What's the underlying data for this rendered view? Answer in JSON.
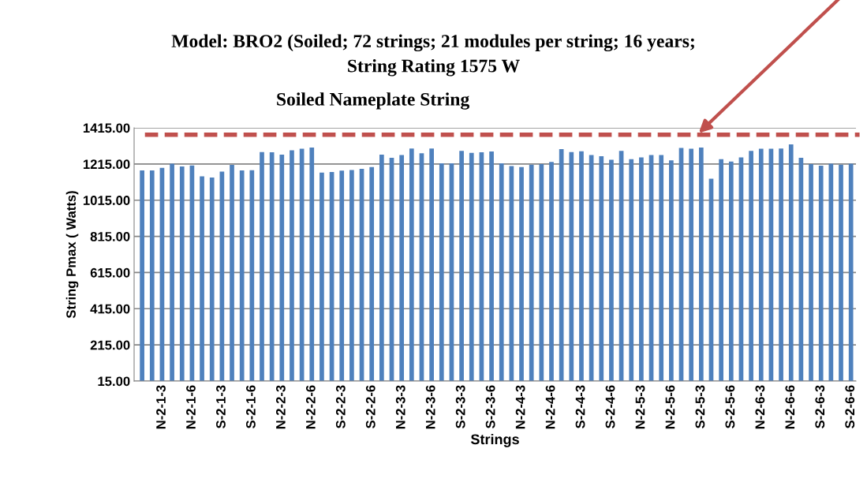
{
  "chart_data": {
    "type": "bar",
    "title": "Model: BRO2 (Soiled; 72 strings; 21 modules per string; 16 years;\nString Rating 1575 W",
    "xlabel": "Strings",
    "ylabel": "String Pmax ( Watts)",
    "categories": [
      null,
      null,
      "N-2-1-3",
      null,
      null,
      "N-2-1-6",
      null,
      null,
      "S-2-1-3",
      null,
      null,
      "S-2-1-6",
      null,
      null,
      "N-2-2-3",
      null,
      null,
      "N-2-2-6",
      null,
      null,
      "S-2-2-3",
      null,
      null,
      "S-2-2-6",
      null,
      null,
      "N-2-3-3",
      null,
      null,
      "N-2-3-6",
      null,
      null,
      "S-2-3-3",
      null,
      null,
      "S-2-3-6",
      null,
      null,
      "N-2-4-3",
      null,
      null,
      "N-2-4-6",
      null,
      null,
      "S-2-4-3",
      null,
      null,
      "S-2-4-6",
      null,
      null,
      "N-2-5-3",
      null,
      null,
      "N-2-5-6",
      null,
      null,
      "S-2-5-3",
      null,
      null,
      "S-2-5-6",
      null,
      null,
      "N-2-6-3",
      null,
      null,
      "N-2-6-6",
      null,
      null,
      "S-2-6-3",
      null,
      null,
      "S-2-6-6"
    ],
    "values": [
      1180,
      1180,
      1194,
      1217,
      1201,
      1207,
      1147,
      1140,
      1173,
      1210,
      1180,
      1181,
      1281,
      1280,
      1267,
      1291,
      1299,
      1306,
      1168,
      1171,
      1178,
      1182,
      1188,
      1198,
      1267,
      1249,
      1265,
      1301,
      1274,
      1300,
      1219,
      1219,
      1287,
      1277,
      1280,
      1284,
      1219,
      1204,
      1198,
      1211,
      1214,
      1226,
      1297,
      1281,
      1285,
      1264,
      1258,
      1238,
      1287,
      1242,
      1251,
      1265,
      1265,
      1235,
      1304,
      1299,
      1306,
      1134,
      1242,
      1229,
      1251,
      1287,
      1299,
      1299,
      1301,
      1323,
      1249,
      1214,
      1206,
      1217,
      1211,
      1217
    ],
    "color": "#4f81bd",
    "ylim": [
      15,
      1415
    ],
    "yticks": [
      {
        "value": 15,
        "label": "15.00"
      },
      {
        "value": 215,
        "label": "215.00"
      },
      {
        "value": 415,
        "label": "415.00"
      },
      {
        "value": 615,
        "label": "615.00"
      },
      {
        "value": 815,
        "label": "815.00"
      },
      {
        "value": 1015,
        "label": "1015.00"
      },
      {
        "value": 1215,
        "label": "1215.00"
      },
      {
        "value": 1415,
        "label": "1415.00"
      }
    ],
    "grid": "y",
    "ref_lines": [
      {
        "axis": "y",
        "value": 1377,
        "label": "Soiled Nameplate String",
        "color": "#c0504d",
        "line_style": "dashed"
      }
    ]
  }
}
